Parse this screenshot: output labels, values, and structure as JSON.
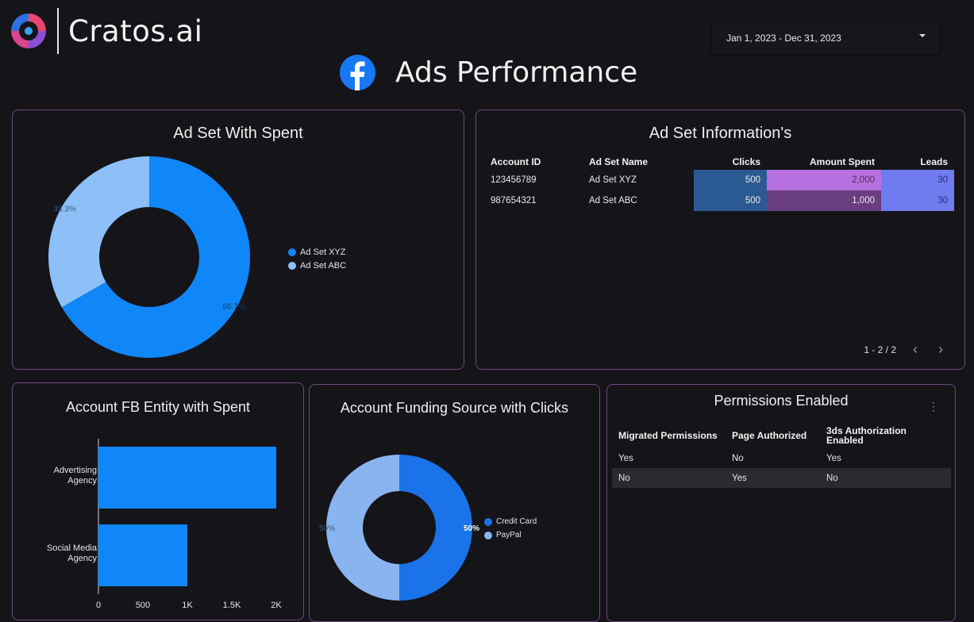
{
  "brand": {
    "name": "Cratos.ai"
  },
  "date_range": {
    "label": "Jan 1, 2023 - Dec 31, 2023"
  },
  "page": {
    "title": "Ads Performance"
  },
  "colors": {
    "blue": "#1087f8",
    "light_blue": "#8cc0f7",
    "border": "#6e4a80"
  },
  "ad_set_spent": {
    "title": "Ad Set With Spent"
  },
  "ad_set_info": {
    "title": "Ad Set Information's",
    "columns": [
      "Account ID",
      "Ad Set Name",
      "Clicks",
      "Amount Spent",
      "Leads"
    ],
    "rows": [
      [
        "123456789",
        "Ad Set XYZ",
        "500",
        "2,000",
        "30"
      ],
      [
        "987654321",
        "Ad Set ABC",
        "500",
        "1,000",
        "30"
      ]
    ],
    "pagination": "1 - 2 / 2"
  },
  "fb_entity": {
    "title": "Account FB Entity with Spent"
  },
  "funding_source": {
    "title": "Account Funding Source with Clicks"
  },
  "permissions": {
    "title": "Permissions Enabled",
    "columns": [
      "Migrated Permissions",
      "Page Authorized",
      "3ds Authorization Enabled"
    ],
    "rows": [
      [
        "Yes",
        "No",
        "Yes"
      ],
      [
        "No",
        "Yes",
        "No"
      ]
    ]
  },
  "chart_data": [
    {
      "type": "pie",
      "title": "Ad Set With Spent",
      "categories": [
        "Ad Set XYZ",
        "Ad Set ABC"
      ],
      "values": [
        66.7,
        33.3
      ],
      "value_labels": [
        "66.7%",
        "33.3%"
      ],
      "colors": [
        "#1087f8",
        "#8cc0f7"
      ],
      "donut": true,
      "legend": "right"
    },
    {
      "type": "bar",
      "orientation": "horizontal",
      "title": "Account FB Entity with Spent",
      "categories": [
        "Advertising Agency",
        "Social Media Agency"
      ],
      "values": [
        2000,
        1000
      ],
      "xlim": [
        0,
        2000
      ],
      "xticks": [
        "0",
        "500",
        "1K",
        "1.5K",
        "2K"
      ],
      "colors": [
        "#1087f8"
      ],
      "grid": false
    },
    {
      "type": "pie",
      "title": "Account Funding Source with Clicks",
      "categories": [
        "Credit Card",
        "PayPal"
      ],
      "values": [
        50,
        50
      ],
      "value_labels": [
        "50%",
        "50%"
      ],
      "colors": [
        "#1a73e8",
        "#8ab4f0"
      ],
      "donut": true,
      "legend": "right"
    }
  ]
}
